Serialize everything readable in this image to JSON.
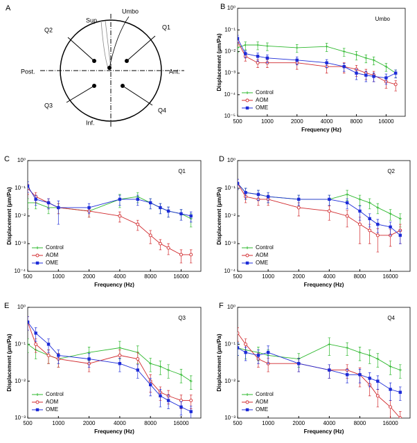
{
  "diagram": {
    "letter": "A",
    "superior": "Sup.",
    "umbo": "Umbo",
    "posterior": "Post.",
    "anterior": "Ant.",
    "inferior": "Inf.",
    "quadrants": [
      "Q1",
      "Q2",
      "Q3",
      "Q4"
    ]
  },
  "chart_data": [
    {
      "type": "line",
      "panel": "B",
      "title": "Umbo",
      "xlabel": "Frequency (Hz)",
      "ylabel": "Displacement (µm/Pa)",
      "xscale": "log",
      "yscale": "log",
      "legend": "lower left",
      "x": [
        500,
        600,
        800,
        1000,
        2000,
        4000,
        6000,
        8000,
        10000,
        12000,
        16000,
        20000
      ],
      "xlim": [
        500,
        25000
      ],
      "xticks": [
        500,
        1000,
        2000,
        4000,
        8000,
        16000
      ],
      "ylim": [
        1e-05,
        1
      ],
      "yticks": [
        {
          "value": 1,
          "label": "10⁰"
        },
        {
          "value": 0.1,
          "label": "10⁻¹"
        },
        {
          "value": 0.01,
          "label": "10⁻²"
        },
        {
          "value": 0.001,
          "label": "10⁻³"
        },
        {
          "value": 0.0001,
          "label": "10⁻⁴"
        },
        {
          "value": 1e-05,
          "label": "10⁻⁵"
        }
      ],
      "series": [
        {
          "name": "Control",
          "color": "#2db82d",
          "marker": "plus",
          "values": [
            0.015,
            0.02,
            0.02,
            0.018,
            0.015,
            0.017,
            0.01,
            0.007,
            0.005,
            0.004,
            0.002,
            0.001
          ],
          "errors": [
            0.006,
            0.008,
            0.008,
            0.007,
            0.006,
            0.007,
            0.004,
            0.003,
            0.002,
            0.0016,
            0.0008,
            0.0004
          ]
        },
        {
          "name": "AOM",
          "color": "#d0262a",
          "marker": "circle",
          "values": [
            0.03,
            0.006,
            0.003,
            0.003,
            0.003,
            0.002,
            0.002,
            0.0015,
            0.001,
            0.0008,
            0.0004,
            0.0003
          ],
          "errors": [
            0.012,
            0.0024,
            0.0012,
            0.0012,
            0.0015,
            0.001,
            0.001,
            0.0008,
            0.0005,
            0.0004,
            0.0002,
            0.00015
          ]
        },
        {
          "name": "OME",
          "color": "#1c2bd8",
          "marker": "square",
          "values": [
            0.04,
            0.008,
            0.006,
            0.005,
            0.004,
            0.003,
            0.002,
            0.001,
            0.0008,
            0.0007,
            0.0006,
            0.001
          ],
          "errors": [
            0.016,
            0.003,
            0.0024,
            0.002,
            0.0016,
            0.0012,
            0.0008,
            0.0005,
            0.0004,
            0.0003,
            0.0003,
            0.0004
          ]
        }
      ]
    },
    {
      "type": "line",
      "panel": "C",
      "title": "Q1",
      "xlabel": "Frequency (Hz)",
      "ylabel": "Displacement (µm/Pa)",
      "xscale": "log",
      "yscale": "log",
      "legend": "lower left",
      "x": [
        500,
        600,
        800,
        1000,
        2000,
        4000,
        6000,
        8000,
        10000,
        12000,
        16000,
        20000
      ],
      "xlim": [
        500,
        25000
      ],
      "xticks": [
        500,
        1000,
        2000,
        4000,
        8000,
        16000
      ],
      "ylim": [
        0.0001,
        1
      ],
      "yticks": [
        {
          "value": 1,
          "label": "10⁰"
        },
        {
          "value": 0.1,
          "label": "10⁻¹"
        },
        {
          "value": 0.01,
          "label": "10⁻²"
        },
        {
          "value": 0.001,
          "label": "10⁻³"
        },
        {
          "value": 0.0001,
          "label": "10⁻⁴"
        }
      ],
      "series": [
        {
          "name": "Control",
          "color": "#2db82d",
          "marker": "plus",
          "values": [
            0.03,
            0.03,
            0.02,
            0.02,
            0.015,
            0.04,
            0.05,
            0.03,
            0.02,
            0.015,
            0.012,
            0.008
          ],
          "errors": [
            0.012,
            0.012,
            0.008,
            0.008,
            0.006,
            0.02,
            0.02,
            0.012,
            0.008,
            0.006,
            0.005,
            0.004
          ]
        },
        {
          "name": "AOM",
          "color": "#d0262a",
          "marker": "circle",
          "values": [
            0.1,
            0.05,
            0.03,
            0.02,
            0.015,
            0.01,
            0.005,
            0.002,
            0.001,
            0.0007,
            0.0004,
            0.0004
          ],
          "errors": [
            0.04,
            0.02,
            0.012,
            0.008,
            0.006,
            0.004,
            0.002,
            0.001,
            0.0004,
            0.0003,
            0.0002,
            0.0002
          ]
        },
        {
          "name": "OME",
          "color": "#1c2bd8",
          "marker": "square",
          "values": [
            0.12,
            0.04,
            0.03,
            0.02,
            0.02,
            0.04,
            0.04,
            0.03,
            0.02,
            0.015,
            0.012,
            0.01
          ],
          "errors": [
            0.05,
            0.016,
            0.012,
            0.015,
            0.008,
            0.016,
            0.016,
            0.012,
            0.008,
            0.006,
            0.005,
            0.004
          ]
        }
      ]
    },
    {
      "type": "line",
      "panel": "D",
      "title": "Q2",
      "xlabel": "Frequency (Hz)",
      "ylabel": "Displacement (µm/Pa)",
      "xscale": "log",
      "yscale": "log",
      "legend": "lower left",
      "x": [
        500,
        600,
        800,
        1000,
        2000,
        4000,
        6000,
        8000,
        10000,
        12000,
        16000,
        20000
      ],
      "xlim": [
        500,
        25000
      ],
      "xticks": [
        500,
        1000,
        2000,
        4000,
        8000,
        16000
      ],
      "ylim": [
        0.0001,
        1
      ],
      "yticks": [
        {
          "value": 1,
          "label": "10⁰"
        },
        {
          "value": 0.1,
          "label": "10⁻¹"
        },
        {
          "value": 0.01,
          "label": "10⁻²"
        },
        {
          "value": 0.001,
          "label": "10⁻³"
        },
        {
          "value": 0.0001,
          "label": "10⁻⁴"
        }
      ],
      "series": [
        {
          "name": "Control",
          "color": "#2db82d",
          "marker": "plus",
          "values": [
            0.15,
            0.07,
            0.06,
            0.05,
            0.04,
            0.04,
            0.06,
            0.04,
            0.03,
            0.02,
            0.012,
            0.008
          ],
          "errors": [
            0.06,
            0.03,
            0.024,
            0.02,
            0.016,
            0.016,
            0.024,
            0.016,
            0.012,
            0.008,
            0.005,
            0.004
          ]
        },
        {
          "name": "AOM",
          "color": "#d0262a",
          "marker": "circle",
          "values": [
            0.15,
            0.05,
            0.04,
            0.04,
            0.02,
            0.015,
            0.01,
            0.005,
            0.003,
            0.002,
            0.002,
            0.003
          ],
          "errors": [
            0.06,
            0.02,
            0.016,
            0.016,
            0.01,
            0.008,
            0.006,
            0.004,
            0.002,
            0.0015,
            0.0012,
            0.002
          ]
        },
        {
          "name": "OME",
          "color": "#1c2bd8",
          "marker": "square",
          "values": [
            0.15,
            0.07,
            0.06,
            0.05,
            0.04,
            0.04,
            0.03,
            0.015,
            0.008,
            0.005,
            0.004,
            0.002
          ],
          "errors": [
            0.06,
            0.03,
            0.024,
            0.02,
            0.016,
            0.016,
            0.012,
            0.008,
            0.004,
            0.0025,
            0.002,
            0.001
          ]
        }
      ]
    },
    {
      "type": "line",
      "panel": "E",
      "title": "Q3",
      "xlabel": "Frequency (Hz)",
      "ylabel": "Displacement (µm/Pa)",
      "xscale": "log",
      "yscale": "log",
      "legend": "lower left",
      "x": [
        500,
        600,
        800,
        1000,
        2000,
        4000,
        6000,
        8000,
        10000,
        12000,
        16000,
        20000
      ],
      "xlim": [
        500,
        25000
      ],
      "xticks": [
        500,
        1000,
        2000,
        4000,
        8000,
        16000
      ],
      "ylim": [
        0.001,
        1
      ],
      "yticks": [
        {
          "value": 1,
          "label": "10⁰"
        },
        {
          "value": 0.1,
          "label": "10⁻¹"
        },
        {
          "value": 0.01,
          "label": "10⁻²"
        },
        {
          "value": 0.001,
          "label": "10⁻³"
        }
      ],
      "series": [
        {
          "name": "Control",
          "color": "#2db82d",
          "marker": "plus",
          "values": [
            0.1,
            0.07,
            0.05,
            0.04,
            0.06,
            0.08,
            0.06,
            0.03,
            0.025,
            0.02,
            0.015,
            0.01
          ],
          "errors": [
            0.04,
            0.03,
            0.02,
            0.016,
            0.024,
            0.04,
            0.03,
            0.012,
            0.01,
            0.008,
            0.006,
            0.004
          ]
        },
        {
          "name": "AOM",
          "color": "#d0262a",
          "marker": "circle",
          "values": [
            0.4,
            0.1,
            0.05,
            0.04,
            0.03,
            0.05,
            0.04,
            0.01,
            0.005,
            0.004,
            0.003,
            0.003
          ],
          "errors": [
            0.16,
            0.04,
            0.02,
            0.016,
            0.012,
            0.02,
            0.02,
            0.005,
            0.002,
            0.0016,
            0.0012,
            0.0012
          ]
        },
        {
          "name": "OME",
          "color": "#1c2bd8",
          "marker": "square",
          "values": [
            0.4,
            0.2,
            0.1,
            0.05,
            0.04,
            0.03,
            0.02,
            0.008,
            0.004,
            0.003,
            0.002,
            0.0015
          ],
          "errors": [
            0.16,
            0.08,
            0.04,
            0.02,
            0.016,
            0.012,
            0.008,
            0.004,
            0.002,
            0.0012,
            0.0008,
            0.0006
          ]
        }
      ]
    },
    {
      "type": "line",
      "panel": "F",
      "title": "Q4",
      "xlabel": "Frequency (Hz)",
      "ylabel": "Displacement (µm/Pa)",
      "xscale": "log",
      "yscale": "log",
      "legend": "lower left",
      "x": [
        500,
        600,
        800,
        1000,
        2000,
        4000,
        6000,
        8000,
        10000,
        12000,
        16000,
        20000
      ],
      "xlim": [
        500,
        25000
      ],
      "xticks": [
        500,
        1000,
        2000,
        4000,
        8000,
        16000
      ],
      "ylim": [
        0.001,
        1
      ],
      "yticks": [
        {
          "value": 1,
          "label": "10⁰"
        },
        {
          "value": 0.1,
          "label": "10⁻¹"
        },
        {
          "value": 0.01,
          "label": "10⁻²"
        },
        {
          "value": 0.001,
          "label": "10⁻³"
        }
      ],
      "series": [
        {
          "name": "Control",
          "color": "#2db82d",
          "marker": "plus",
          "values": [
            0.08,
            0.07,
            0.06,
            0.05,
            0.04,
            0.1,
            0.08,
            0.06,
            0.05,
            0.04,
            0.025,
            0.02
          ],
          "errors": [
            0.03,
            0.03,
            0.024,
            0.02,
            0.016,
            0.05,
            0.03,
            0.024,
            0.02,
            0.016,
            0.01,
            0.008
          ]
        },
        {
          "name": "AOM",
          "color": "#d0262a",
          "marker": "circle",
          "values": [
            0.2,
            0.1,
            0.04,
            0.03,
            0.03,
            0.02,
            0.02,
            0.015,
            0.008,
            0.004,
            0.002,
            0.001
          ],
          "errors": [
            0.08,
            0.04,
            0.016,
            0.012,
            0.012,
            0.008,
            0.008,
            0.008,
            0.004,
            0.002,
            0.001,
            0.0005
          ]
        },
        {
          "name": "OME",
          "color": "#1c2bd8",
          "marker": "square",
          "values": [
            0.08,
            0.06,
            0.05,
            0.06,
            0.03,
            0.02,
            0.015,
            0.015,
            0.012,
            0.01,
            0.006,
            0.005
          ],
          "errors": [
            0.03,
            0.024,
            0.02,
            0.03,
            0.012,
            0.008,
            0.006,
            0.006,
            0.005,
            0.004,
            0.003,
            0.002
          ]
        }
      ]
    }
  ]
}
